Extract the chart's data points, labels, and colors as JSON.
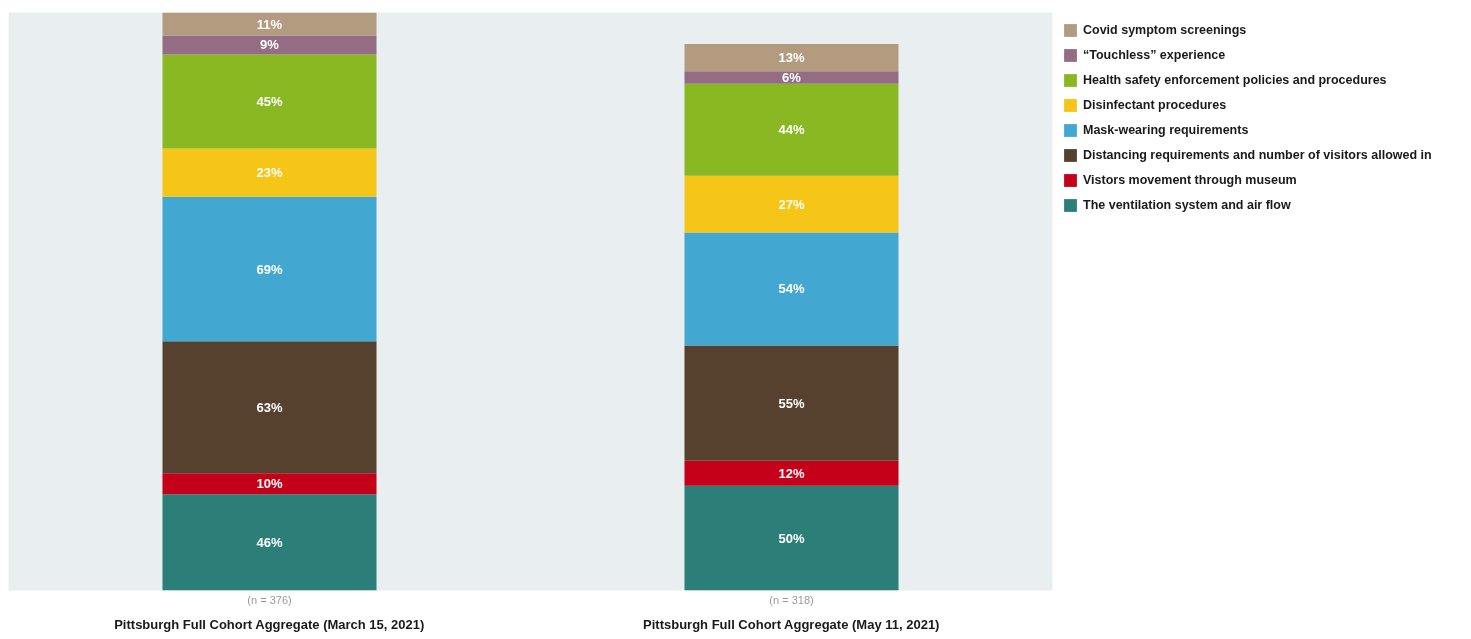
{
  "chart_data": {
    "type": "bar",
    "stacked": true,
    "legend": "top right",
    "grid": false,
    "categories": [
      "Pittsburgh Full Cohort Aggregate (March 15, 2021)",
      "Pittsburgh Full Cohort Aggregate (May 11, 2021)"
    ],
    "series": [
      {
        "name": "The ventilation system and air flow",
        "color": "#2b7f78",
        "values": [
          46,
          50
        ],
        "value_labels": [
          "46%",
          "50%"
        ]
      },
      {
        "name": "Vistors movement through museum",
        "color": "#c50019",
        "values": [
          10,
          12
        ],
        "value_labels": [
          "10%",
          "12%"
        ]
      },
      {
        "name": "Distancing requirements and number of visitors allowed in",
        "color": "#56402e",
        "values": [
          63,
          55
        ],
        "value_labels": [
          "63%",
          "55%"
        ]
      },
      {
        "name": "Mask-wearing requirements",
        "color": "#42a8d2",
        "values": [
          69,
          54
        ],
        "value_labels": [
          "69%",
          "54%"
        ]
      },
      {
        "name": "Disinfectant procedures",
        "color": "#f5c518",
        "values": [
          23,
          27
        ],
        "value_labels": [
          "23%",
          "27%"
        ]
      },
      {
        "name": "Health safety enforcement policies and procedures",
        "color": "#8ab822",
        "values": [
          45,
          44
        ],
        "value_labels": [
          "45%",
          "44%"
        ]
      },
      {
        "name": "“Touchless” experience",
        "color": "#946c83",
        "values": [
          9,
          6
        ],
        "value_labels": [
          "9%",
          "6%"
        ]
      },
      {
        "name": "Covid symptom screenings",
        "color": "#b39b7f",
        "values": [
          11,
          13
        ],
        "value_labels": [
          "11%",
          "13%"
        ]
      }
    ],
    "annotations": [
      "(n = 376)",
      "(n = 318)"
    ]
  }
}
